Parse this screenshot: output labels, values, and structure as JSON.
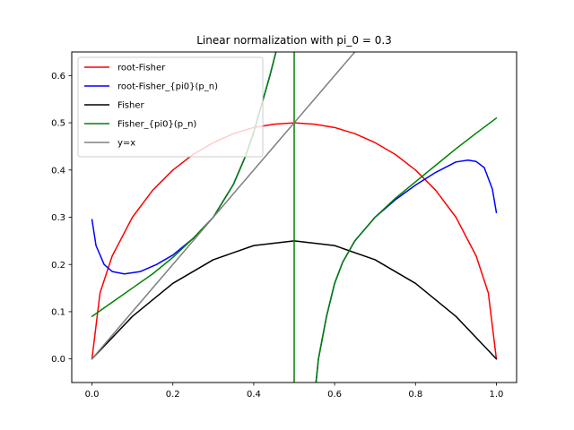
{
  "chart_data": {
    "type": "line",
    "title": "Linear normalization with pi_0 = 0.3",
    "xlabel": "",
    "ylabel": "",
    "xlim": [
      -0.05,
      1.05
    ],
    "ylim": [
      -0.05,
      0.65
    ],
    "x_ticks": [
      0.0,
      0.2,
      0.4,
      0.6,
      0.8,
      1.0
    ],
    "x_tick_labels": [
      "0.0",
      "0.2",
      "0.4",
      "0.6",
      "0.8",
      "1.0"
    ],
    "y_ticks": [
      0.0,
      0.1,
      0.2,
      0.3,
      0.4,
      0.5,
      0.6
    ],
    "y_tick_labels": [
      "0.0",
      "0.1",
      "0.2",
      "0.3",
      "0.4",
      "0.5",
      "0.6"
    ],
    "grid": false,
    "legend_position": "top-left",
    "series": [
      {
        "name": "root-Fisher",
        "color": "#ff0000",
        "x": [
          0.0,
          0.02,
          0.05,
          0.1,
          0.15,
          0.2,
          0.25,
          0.3,
          0.35,
          0.4,
          0.45,
          0.5,
          0.55,
          0.6,
          0.65,
          0.7,
          0.75,
          0.8,
          0.85,
          0.9,
          0.95,
          0.98,
          1.0
        ],
        "y": [
          0.0,
          0.14,
          0.218,
          0.3,
          0.357,
          0.4,
          0.433,
          0.458,
          0.477,
          0.49,
          0.497,
          0.5,
          0.497,
          0.49,
          0.477,
          0.458,
          0.433,
          0.4,
          0.357,
          0.3,
          0.218,
          0.14,
          0.0
        ]
      },
      {
        "name": "root-Fisher_{pi0}(p_n)",
        "color": "#0000ff",
        "segments": [
          {
            "x": [
              0.0,
              0.01,
              0.03,
              0.05,
              0.08,
              0.12,
              0.16,
              0.2,
              0.25,
              0.3,
              0.35,
              0.38,
              0.4,
              0.42,
              0.44,
              0.455
            ],
            "y": [
              0.295,
              0.24,
              0.2,
              0.185,
              0.18,
              0.185,
              0.2,
              0.22,
              0.255,
              0.3,
              0.37,
              0.43,
              0.48,
              0.54,
              0.6,
              0.65
            ]
          },
          {
            "x": [
              0.554,
              0.56,
              0.58,
              0.6,
              0.62,
              0.65,
              0.7,
              0.75,
              0.8,
              0.85,
              0.9,
              0.93,
              0.95,
              0.97,
              0.99,
              1.0
            ],
            "y": [
              -0.05,
              0.0,
              0.09,
              0.16,
              0.205,
              0.25,
              0.3,
              0.337,
              0.368,
              0.395,
              0.417,
              0.421,
              0.418,
              0.405,
              0.36,
              0.31
            ]
          }
        ]
      },
      {
        "name": "Fisher",
        "color": "#000000",
        "x": [
          0.0,
          0.1,
          0.2,
          0.3,
          0.4,
          0.5,
          0.6,
          0.7,
          0.8,
          0.9,
          1.0
        ],
        "y": [
          0.0,
          0.09,
          0.16,
          0.21,
          0.24,
          0.25,
          0.24,
          0.21,
          0.16,
          0.09,
          0.0
        ]
      },
      {
        "name": "Fisher_{pi0}(p_n)",
        "color": "#008000",
        "segments": [
          {
            "x": [
              0.0,
              0.05,
              0.1,
              0.15,
              0.2,
              0.25,
              0.3,
              0.35,
              0.38,
              0.4,
              0.42,
              0.44,
              0.455
            ],
            "y": [
              0.09,
              0.12,
              0.15,
              0.18,
              0.215,
              0.255,
              0.3,
              0.37,
              0.43,
              0.48,
              0.54,
              0.6,
              0.65
            ]
          },
          {
            "x": [
              0.5,
              0.5
            ],
            "y": [
              -0.05,
              0.65
            ]
          },
          {
            "x": [
              0.554,
              0.56,
              0.58,
              0.6,
              0.62,
              0.65,
              0.7,
              0.75,
              0.8,
              0.85,
              0.9,
              0.95,
              1.0
            ],
            "y": [
              -0.05,
              0.0,
              0.09,
              0.16,
              0.205,
              0.25,
              0.3,
              0.34,
              0.375,
              0.41,
              0.445,
              0.478,
              0.51
            ]
          }
        ]
      },
      {
        "name": "y=x",
        "color": "#808080",
        "x": [
          0.0,
          0.65
        ],
        "y": [
          0.0,
          0.65
        ]
      }
    ]
  }
}
